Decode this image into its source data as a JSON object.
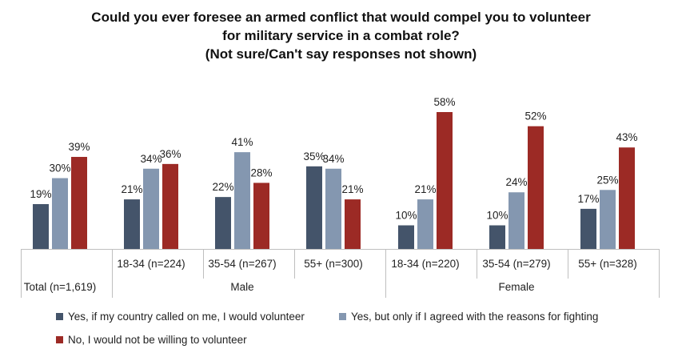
{
  "chart_data": {
    "type": "bar",
    "title_lines": [
      "Could you ever foresee an armed conflict that would compel you to volunteer",
      "for military service in a combat role?",
      "(Not sure/Can't say responses not shown)"
    ],
    "groups": [
      {
        "name": "",
        "categories": [
          "Total (n=1,619)"
        ]
      },
      {
        "name": "Male",
        "categories": [
          "18-34 (n=224)",
          "35-54 (n=267)",
          "55+ (n=300)"
        ]
      },
      {
        "name": "Female",
        "categories": [
          "18-34 (n=220)",
          "35-54 (n=279)",
          "55+ (n=328)"
        ]
      }
    ],
    "categories": [
      "Total (n=1,619)",
      "18-34 (n=224)",
      "35-54 (n=267)",
      "55+ (n=300)",
      "18-34 (n=220)",
      "35-54 (n=279)",
      "55+ (n=328)"
    ],
    "series": [
      {
        "name": "Yes, if my country called on me, I would volunteer",
        "color": "#44546a",
        "values": [
          19,
          21,
          22,
          35,
          10,
          10,
          17
        ]
      },
      {
        "name": "Yes, but only if I agreed with the reasons for fighting",
        "color": "#8497b0",
        "values": [
          30,
          34,
          41,
          34,
          21,
          24,
          25
        ]
      },
      {
        "name": "No, I would not be willing to volunteer",
        "color": "#9c2a25",
        "values": [
          39,
          36,
          28,
          21,
          58,
          52,
          43
        ]
      }
    ],
    "value_suffix": "%",
    "ylim": [
      0,
      65
    ],
    "grid": false,
    "legend_position": "bottom"
  }
}
